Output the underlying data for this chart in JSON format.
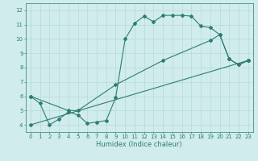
{
  "line1_x": [
    0,
    1,
    2,
    3,
    4,
    5,
    6,
    7,
    8,
    9,
    10,
    11,
    12,
    13,
    14,
    15,
    16,
    17,
    18,
    19,
    20,
    21,
    22,
    23
  ],
  "line1_y": [
    6.0,
    5.5,
    4.0,
    4.4,
    4.9,
    4.7,
    4.1,
    4.2,
    4.3,
    5.9,
    10.0,
    11.1,
    11.6,
    11.2,
    11.65,
    11.65,
    11.65,
    11.6,
    10.9,
    10.8,
    10.3,
    8.6,
    8.2,
    8.5
  ],
  "line2_x": [
    0,
    4,
    5,
    9,
    14,
    19,
    20,
    21,
    22,
    23
  ],
  "line2_y": [
    6.0,
    5.0,
    5.0,
    6.8,
    8.5,
    9.9,
    10.3,
    8.6,
    8.2,
    8.5
  ],
  "line3_x": [
    0,
    23
  ],
  "line3_y": [
    4.0,
    8.5
  ],
  "color": "#2d7d74",
  "bg_color": "#d0ecec",
  "xlabel": "Humidex (Indice chaleur)",
  "ylim": [
    3.5,
    12.5
  ],
  "xlim": [
    -0.5,
    23.5
  ],
  "yticks": [
    4,
    5,
    6,
    7,
    8,
    9,
    10,
    11,
    12
  ],
  "xticks": [
    0,
    1,
    2,
    3,
    4,
    5,
    6,
    7,
    8,
    9,
    10,
    11,
    12,
    13,
    14,
    15,
    16,
    17,
    18,
    19,
    20,
    21,
    22,
    23
  ],
  "grid_color": "#b8d8d8",
  "markersize": 2.0,
  "linewidth": 0.8,
  "tick_fontsize": 5.0,
  "label_fontsize": 6.0
}
